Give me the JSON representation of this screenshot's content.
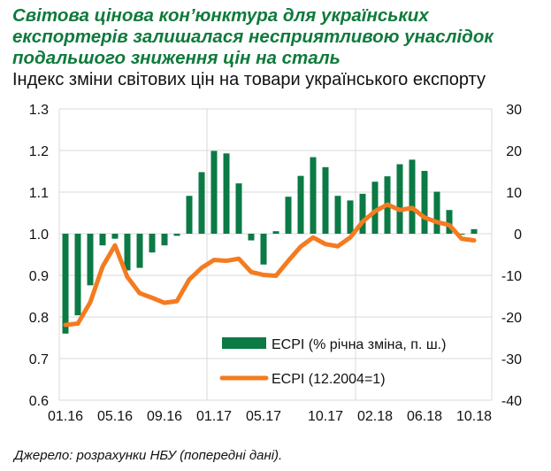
{
  "title": "Світова цінова кон’юнктура для українських експортерів залишалася несприятливою унаслідок подальшого зниження цін на сталь",
  "subtitle": "Індекс зміни світових цін на товари українського експорту",
  "source": "Джерело: розрахунки НБУ (попередні дані).",
  "colors": {
    "bars": "#0b7a45",
    "line": "#f47b20",
    "title": "#0f7a3c"
  },
  "chart_data": {
    "type": "bar+line",
    "months": [
      "01.16",
      "02.16",
      "03.16",
      "04.16",
      "05.16",
      "06.16",
      "07.16",
      "08.16",
      "09.16",
      "10.16",
      "11.16",
      "12.16",
      "01.17",
      "02.17",
      "03.17",
      "04.17",
      "05.17",
      "06.17",
      "07.17",
      "08.17",
      "09.17",
      "10.17",
      "11.17",
      "12.17",
      "01.18",
      "02.18",
      "03.18",
      "04.18",
      "05.18",
      "06.18",
      "07.18",
      "08.18",
      "09.18",
      "10.18"
    ],
    "x_tick_labels": [
      "01.16",
      "05.16",
      "09.16",
      "01.17",
      "05.17",
      "10.17",
      "02.18",
      "06.18",
      "10.18"
    ],
    "left_axis": {
      "ylim": [
        0.6,
        1.3
      ],
      "ticks": [
        "0.6",
        "0.7",
        "0.8",
        "0.9",
        "1.0",
        "1.1",
        "1.2",
        "1.3"
      ]
    },
    "right_axis": {
      "ylim": [
        -40,
        30
      ],
      "ticks": [
        "-40",
        "-30",
        "-20",
        "-10",
        "0",
        "10",
        "20",
        "30"
      ]
    },
    "series": [
      {
        "name": "ECPI (% річна зміна, п. ш.)",
        "type": "bar",
        "axis": "right",
        "values": [
          -24,
          -19.6,
          -12.4,
          -2.8,
          -1.2,
          -8.8,
          -8.2,
          -4.5,
          -2.8,
          -0.5,
          9.1,
          14.8,
          19.9,
          19.3,
          12.1,
          -1.6,
          -7.4,
          0.6,
          8.9,
          13.9,
          18.4,
          16.0,
          9.1,
          8.0,
          9.6,
          12.5,
          13.8,
          16.7,
          17.8,
          15.1,
          10.1,
          5.7,
          -0.2,
          1.1
        ]
      },
      {
        "name": "ECPI (12.2004=1)",
        "type": "line",
        "axis": "left",
        "values": [
          0.781,
          0.784,
          0.835,
          0.921,
          0.972,
          0.896,
          0.857,
          0.846,
          0.834,
          0.838,
          0.89,
          0.918,
          0.937,
          0.935,
          0.94,
          0.908,
          0.901,
          0.899,
          0.935,
          0.969,
          0.991,
          0.975,
          0.97,
          0.991,
          1.029,
          1.054,
          1.07,
          1.057,
          1.062,
          1.039,
          1.028,
          1.021,
          0.988,
          0.984
        ]
      }
    ],
    "legend": "bottom-right inside",
    "grid": true
  }
}
